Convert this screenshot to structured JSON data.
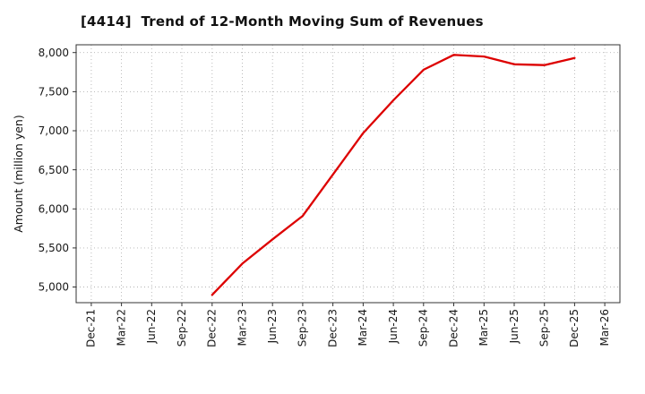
{
  "chart_data": {
    "type": "line",
    "title": "[4414]  Trend of 12-Month Moving Sum of Revenues",
    "ylabel": "Amount (million yen)",
    "xlabel": "",
    "grid": "dotted",
    "legend": "none",
    "line_color": "#dd0000",
    "x_ticks": [
      "Dec-21",
      "Mar-22",
      "Jun-22",
      "Sep-22",
      "Dec-22",
      "Mar-23",
      "Jun-23",
      "Sep-23",
      "Dec-23",
      "Mar-24",
      "Jun-24",
      "Sep-24",
      "Dec-24",
      "Mar-25",
      "Jun-25",
      "Sep-25",
      "Dec-25",
      "Mar-26"
    ],
    "y_ticks": [
      5000,
      5500,
      6000,
      6500,
      7000,
      7500,
      8000
    ],
    "y_tick_labels": [
      "5,000",
      "5,500",
      "6,000",
      "6,500",
      "7,000",
      "7,500",
      "8,000"
    ],
    "ylim": [
      4800,
      8100
    ],
    "series": [
      {
        "name": "12-Month Moving Sum of Revenues",
        "points": [
          {
            "x": "Dec-22",
            "y": 4900
          },
          {
            "x": "Mar-23",
            "y": 5300
          },
          {
            "x": "Jun-23",
            "y": 5610
          },
          {
            "x": "Sep-23",
            "y": 5910
          },
          {
            "x": "Dec-23",
            "y": 6440
          },
          {
            "x": "Mar-24",
            "y": 6970
          },
          {
            "x": "Jun-24",
            "y": 7390
          },
          {
            "x": "Sep-24",
            "y": 7780
          },
          {
            "x": "Dec-24",
            "y": 7970
          },
          {
            "x": "Mar-25",
            "y": 7950
          },
          {
            "x": "Jun-25",
            "y": 7850
          },
          {
            "x": "Sep-25",
            "y": 7840
          },
          {
            "x": "Dec-25",
            "y": 7930
          }
        ]
      }
    ]
  }
}
